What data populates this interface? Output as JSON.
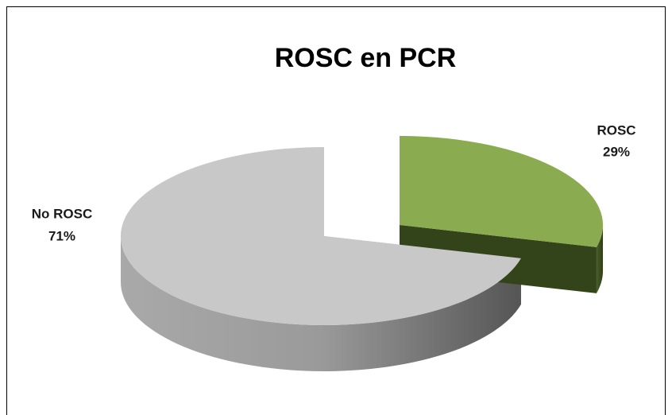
{
  "chart_data": {
    "type": "pie",
    "title": "ROSC en PCR",
    "categories": [
      "ROSC",
      "No ROSC"
    ],
    "values": [
      29,
      71
    ],
    "value_labels": [
      "29%",
      "71%"
    ],
    "colors": [
      "#8aab4f",
      "#c8c8c8"
    ],
    "start_angle": -90,
    "exploded": [
      true,
      false
    ]
  }
}
